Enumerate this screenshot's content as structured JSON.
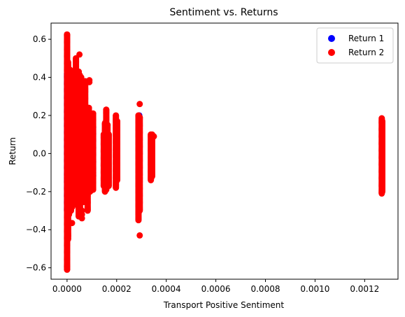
{
  "chart_data": {
    "type": "scatter",
    "title": "Sentiment vs. Returns",
    "xlabel": "Transport Positive Sentiment",
    "ylabel": "Return",
    "xlim": [
      -6.45e-05,
      0.0013345
    ],
    "ylim": [
      -0.66,
      0.685
    ],
    "x_ticks": [
      0,
      0.0002,
      0.0004,
      0.0006,
      0.0008,
      0.001,
      0.0012
    ],
    "x_tick_labels": [
      "0.0000",
      "0.0002",
      "0.0004",
      "0.0006",
      "0.0008",
      "0.0010",
      "0.0012"
    ],
    "y_ticks": [
      -0.6,
      -0.4,
      -0.2,
      0.0,
      0.2,
      0.4,
      0.6
    ],
    "y_tick_labels": [
      "−0.6",
      "−0.4",
      "−0.2",
      "0.0",
      "0.2",
      "0.4",
      "0.6"
    ],
    "grid": false,
    "legend_position": "top-right",
    "series": [
      {
        "name": "Return 1",
        "color": "#0000ff",
        "clusters": [
          {
            "x": 0.0,
            "ymin": -0.3,
            "ymax": 0.42
          },
          {
            "x": 5.25e-05,
            "ymin": -0.2,
            "ymax": 0.2
          },
          {
            "x": 0.000105,
            "ymin": -0.12,
            "ymax": 0.14
          },
          {
            "x": 0.000291,
            "ymin": -0.18,
            "ymax": 0.2
          },
          {
            "x": 0.00127,
            "ymin": -0.19,
            "ymax": 0.16
          }
        ],
        "points": [
          [
            0.000291,
            0.2
          ]
        ]
      },
      {
        "name": "Return 2",
        "color": "#ff0000",
        "clusters": [
          {
            "x": 0.0,
            "ymin": -0.61,
            "ymax": 0.625
          },
          {
            "x": 4e-06,
            "ymin": -0.45,
            "ymax": 0.48
          },
          {
            "x": 8e-06,
            "ymin": -0.32,
            "ymax": 0.42
          },
          {
            "x": 1.2e-05,
            "ymin": -0.29,
            "ymax": 0.44
          },
          {
            "x": 1.6e-05,
            "ymin": -0.3,
            "ymax": 0.41
          },
          {
            "x": 2.1e-05,
            "ymin": -0.28,
            "ymax": 0.42
          },
          {
            "x": 2.6e-05,
            "ymin": -0.27,
            "ymax": 0.39
          },
          {
            "x": 3.1e-05,
            "ymin": -0.21,
            "ymax": 0.42
          },
          {
            "x": 3.6e-05,
            "ymin": -0.2,
            "ymax": 0.5
          },
          {
            "x": 4.2e-05,
            "ymin": -0.24,
            "ymax": 0.4
          },
          {
            "x": 4.7e-05,
            "ymin": -0.33,
            "ymax": 0.43
          },
          {
            "x": 5.2e-05,
            "ymin": -0.3,
            "ymax": 0.41
          },
          {
            "x": 5.7e-05,
            "ymin": -0.24,
            "ymax": 0.4
          },
          {
            "x": 6.2e-05,
            "ymin": -0.18,
            "ymax": 0.3
          },
          {
            "x": 6.8e-05,
            "ymin": -0.15,
            "ymax": 0.33
          },
          {
            "x": 7.3e-05,
            "ymin": -0.12,
            "ymax": 0.38
          },
          {
            "x": 7.8e-05,
            "ymin": -0.24,
            "ymax": 0.16
          },
          {
            "x": 8.3e-05,
            "ymin": -0.3,
            "ymax": 0.12
          },
          {
            "x": 8.8e-05,
            "ymin": -0.15,
            "ymax": 0.24
          },
          {
            "x": 9.3e-05,
            "ymin": -0.2,
            "ymax": 0.2
          },
          {
            "x": 9.9e-05,
            "ymin": -0.16,
            "ymax": 0.17
          },
          {
            "x": 0.000105,
            "ymin": -0.19,
            "ymax": 0.21
          },
          {
            "x": 0.000148,
            "ymin": -0.17,
            "ymax": 0.1
          },
          {
            "x": 0.000153,
            "ymin": -0.2,
            "ymax": 0.16
          },
          {
            "x": 0.000158,
            "ymin": -0.19,
            "ymax": 0.23
          },
          {
            "x": 0.000163,
            "ymin": -0.13,
            "ymax": 0.15
          },
          {
            "x": 0.000168,
            "ymin": -0.17,
            "ymax": 0.1
          },
          {
            "x": 0.000197,
            "ymin": -0.18,
            "ymax": 0.2
          },
          {
            "x": 0.000202,
            "ymin": -0.14,
            "ymax": 0.17
          },
          {
            "x": 0.000288,
            "ymin": -0.35,
            "ymax": 0.2
          },
          {
            "x": 0.000293,
            "ymin": -0.3,
            "ymax": 0.19
          },
          {
            "x": 0.000338,
            "ymin": -0.14,
            "ymax": 0.1
          },
          {
            "x": 0.000343,
            "ymin": -0.12,
            "ymax": 0.1
          },
          {
            "x": 0.001269,
            "ymin": -0.21,
            "ymax": 0.185
          },
          {
            "x": 0.001271,
            "ymin": -0.2,
            "ymax": 0.17
          }
        ],
        "points": [
          [
            0.000293,
            0.26
          ],
          [
            0.000293,
            -0.43
          ],
          [
            0.0,
            0.625
          ],
          [
            0.0,
            -0.608
          ],
          [
            5e-05,
            0.52
          ],
          [
            9e-05,
            0.385
          ],
          [
            9e-05,
            0.375
          ],
          [
            0.000105,
            0.21
          ],
          [
            6e-05,
            -0.3
          ],
          [
            6e-05,
            -0.32
          ],
          [
            6e-05,
            -0.34
          ],
          [
            2e-05,
            -0.365
          ],
          [
            6.5e-05,
            -0.255
          ],
          [
            7e-05,
            -0.225
          ],
          [
            3e-05,
            -0.24
          ],
          [
            0.00035,
            0.09
          ],
          [
            0.000168,
            -0.15
          ],
          [
            0.00127,
            -0.2
          ],
          [
            0.000105,
            -0.1
          ],
          [
            9e-05,
            -0.12
          ]
        ]
      }
    ]
  }
}
